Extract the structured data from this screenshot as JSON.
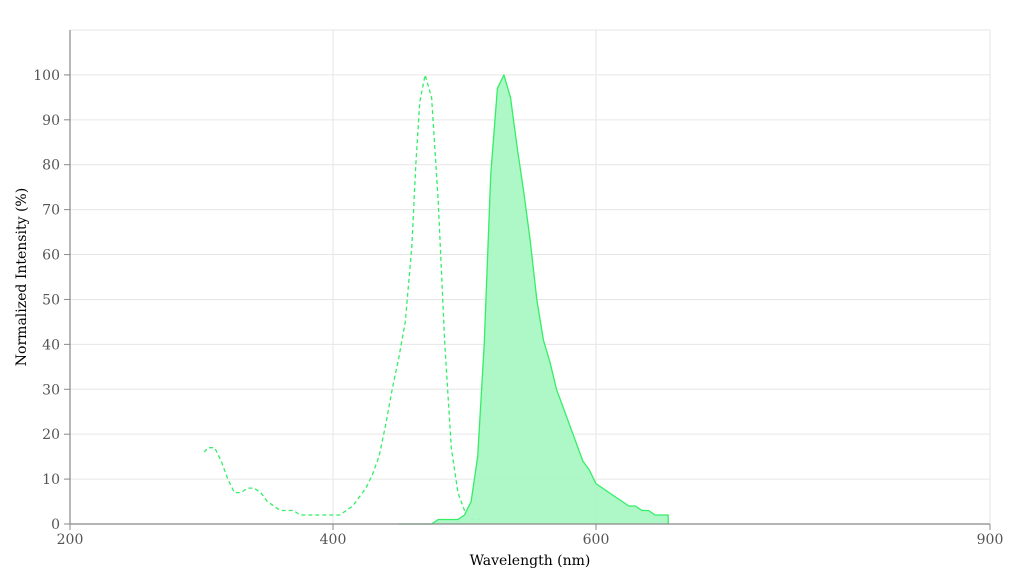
{
  "chart_data": {
    "type": "area",
    "title": "",
    "xlabel": "Wavelength (nm)",
    "ylabel": "Normalized Intensity (%)",
    "xlim": [
      200,
      900
    ],
    "ylim": [
      0,
      110
    ],
    "x_ticks": [
      200,
      400,
      600,
      900
    ],
    "y_ticks": [
      0,
      10,
      20,
      30,
      40,
      50,
      60,
      70,
      80,
      90,
      100
    ],
    "grid": true,
    "colors": {
      "line": "#33ee66",
      "fill": "#aaf7c4",
      "grid": "#e6e6e6",
      "axis": "#888888"
    },
    "series": [
      {
        "style": "dashed",
        "filled": false,
        "x": [
          302,
          305,
          310,
          315,
          320,
          325,
          330,
          335,
          340,
          345,
          350,
          355,
          360,
          365,
          370,
          375,
          380,
          385,
          390,
          395,
          400,
          405,
          410,
          415,
          420,
          425,
          430,
          435,
          440,
          445,
          450,
          455,
          460,
          463,
          466,
          470,
          475,
          480,
          485,
          490,
          495,
          500,
          505,
          510,
          515
        ],
        "y": [
          16,
          17,
          17,
          14,
          10,
          7,
          7,
          8,
          8,
          7,
          5,
          4,
          3,
          3,
          3,
          2,
          2,
          2,
          2,
          2,
          2,
          2,
          3,
          4,
          6,
          8,
          11,
          15,
          22,
          30,
          37,
          45,
          62,
          80,
          94,
          100,
          95,
          72,
          40,
          17,
          7,
          3,
          1,
          1,
          1
        ]
      },
      {
        "style": "solid",
        "filled": true,
        "x": [
          450,
          460,
          470,
          475,
          480,
          485,
          490,
          495,
          500,
          505,
          510,
          515,
          520,
          525,
          530,
          535,
          540,
          545,
          550,
          555,
          560,
          565,
          570,
          575,
          580,
          585,
          590,
          595,
          600,
          605,
          610,
          615,
          620,
          625,
          630,
          635,
          640,
          645,
          650,
          655,
          655
        ],
        "y": [
          0,
          0,
          0,
          0,
          1,
          1,
          1,
          1,
          2,
          5,
          15,
          40,
          78,
          97,
          100,
          95,
          84,
          74,
          63,
          50,
          41,
          36,
          30,
          26,
          22,
          18,
          14,
          12,
          9,
          8,
          7,
          6,
          5,
          4,
          4,
          3,
          3,
          2,
          2,
          2,
          0
        ]
      }
    ]
  }
}
